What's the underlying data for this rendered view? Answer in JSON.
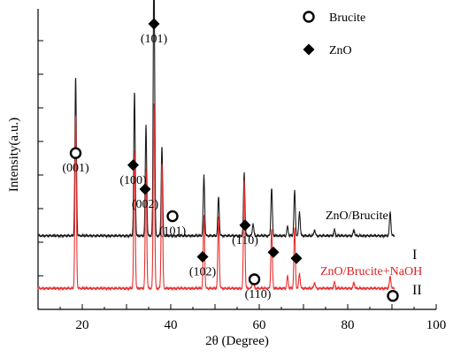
{
  "chart_data": {
    "type": "line",
    "xlabel": "2θ (Degree)",
    "ylabel": "Intensity(a.u.)",
    "xlim": [
      10,
      100
    ],
    "xticks": [
      20,
      40,
      60,
      80,
      100
    ],
    "grid": false,
    "legend_position": "top-right",
    "legend": [
      {
        "label": "Brucite",
        "marker": "open-circle"
      },
      {
        "label": "ZnO",
        "marker": "filled-diamond"
      }
    ],
    "colors": {
      "trace_I": "#1a1a1a",
      "trace_II": "#e83030",
      "label_II": "#e02020",
      "axis": "#000000"
    },
    "series": [
      {
        "name": "ZnO/Brucite",
        "roman": "I",
        "baseline_level": 0.245,
        "peaks": [
          {
            "x": 18.5,
            "h": 0.53
          },
          {
            "x": 31.8,
            "h": 0.48
          },
          {
            "x": 34.4,
            "h": 0.37
          },
          {
            "x": 36.2,
            "h": 0.94
          },
          {
            "x": 38.0,
            "h": 0.3
          },
          {
            "x": 47.5,
            "h": 0.2
          },
          {
            "x": 50.8,
            "h": 0.13
          },
          {
            "x": 56.6,
            "h": 0.21
          },
          {
            "x": 58.6,
            "h": 0.04
          },
          {
            "x": 62.8,
            "h": 0.16
          },
          {
            "x": 66.4,
            "h": 0.03
          },
          {
            "x": 68.0,
            "h": 0.15
          },
          {
            "x": 69.1,
            "h": 0.08
          },
          {
            "x": 72.5,
            "h": 0.02
          },
          {
            "x": 77.0,
            "h": 0.02
          },
          {
            "x": 81.4,
            "h": 0.02
          },
          {
            "x": 89.6,
            "h": 0.08
          }
        ]
      },
      {
        "name": "ZnO/Brucite+NaOH",
        "roman": "II",
        "baseline_level": 0.07,
        "peaks": [
          {
            "x": 18.5,
            "h": 0.58
          },
          {
            "x": 31.8,
            "h": 0.46
          },
          {
            "x": 34.4,
            "h": 0.4
          },
          {
            "x": 36.2,
            "h": 0.62
          },
          {
            "x": 38.0,
            "h": 0.42
          },
          {
            "x": 47.5,
            "h": 0.24
          },
          {
            "x": 50.8,
            "h": 0.24
          },
          {
            "x": 56.6,
            "h": 0.36
          },
          {
            "x": 58.6,
            "h": 0.04
          },
          {
            "x": 62.8,
            "h": 0.2
          },
          {
            "x": 66.4,
            "h": 0.04
          },
          {
            "x": 68.0,
            "h": 0.2
          },
          {
            "x": 69.1,
            "h": 0.05
          },
          {
            "x": 72.5,
            "h": 0.02
          },
          {
            "x": 77.0,
            "h": 0.02
          },
          {
            "x": 81.4,
            "h": 0.02
          },
          {
            "x": 89.6,
            "h": 0.04
          }
        ]
      }
    ],
    "annotations": [
      {
        "label": "(001)",
        "x": 18.5,
        "marker": "open-circle",
        "level": 0.52
      },
      {
        "label": "(100)",
        "x": 31.5,
        "marker": "filled-diamond",
        "level": 0.48
      },
      {
        "label": "(002)",
        "x": 34.2,
        "marker": "filled-diamond",
        "level": 0.4
      },
      {
        "label": "(101)",
        "x": 36.2,
        "marker": "filled-diamond",
        "level": 0.95
      },
      {
        "label": "(101)",
        "x": 40.4,
        "marker": "open-circle",
        "level": 0.31
      },
      {
        "label": "(102)",
        "x": 47.2,
        "marker": "filled-diamond",
        "level": 0.175
      },
      {
        "label": "(110)",
        "x": 56.8,
        "marker": "filled-diamond",
        "level": 0.28
      },
      {
        "label": "(110)",
        "x": 58.9,
        "marker": "open-circle",
        "level": 0.1
      },
      {
        "label": "",
        "x": 63.2,
        "marker": "filled-diamond",
        "level": 0.19
      },
      {
        "label": "",
        "x": 68.4,
        "marker": "filled-diamond",
        "level": 0.17
      },
      {
        "label": "",
        "x": 90.2,
        "marker": "open-circle",
        "level": 0.045
      }
    ]
  }
}
